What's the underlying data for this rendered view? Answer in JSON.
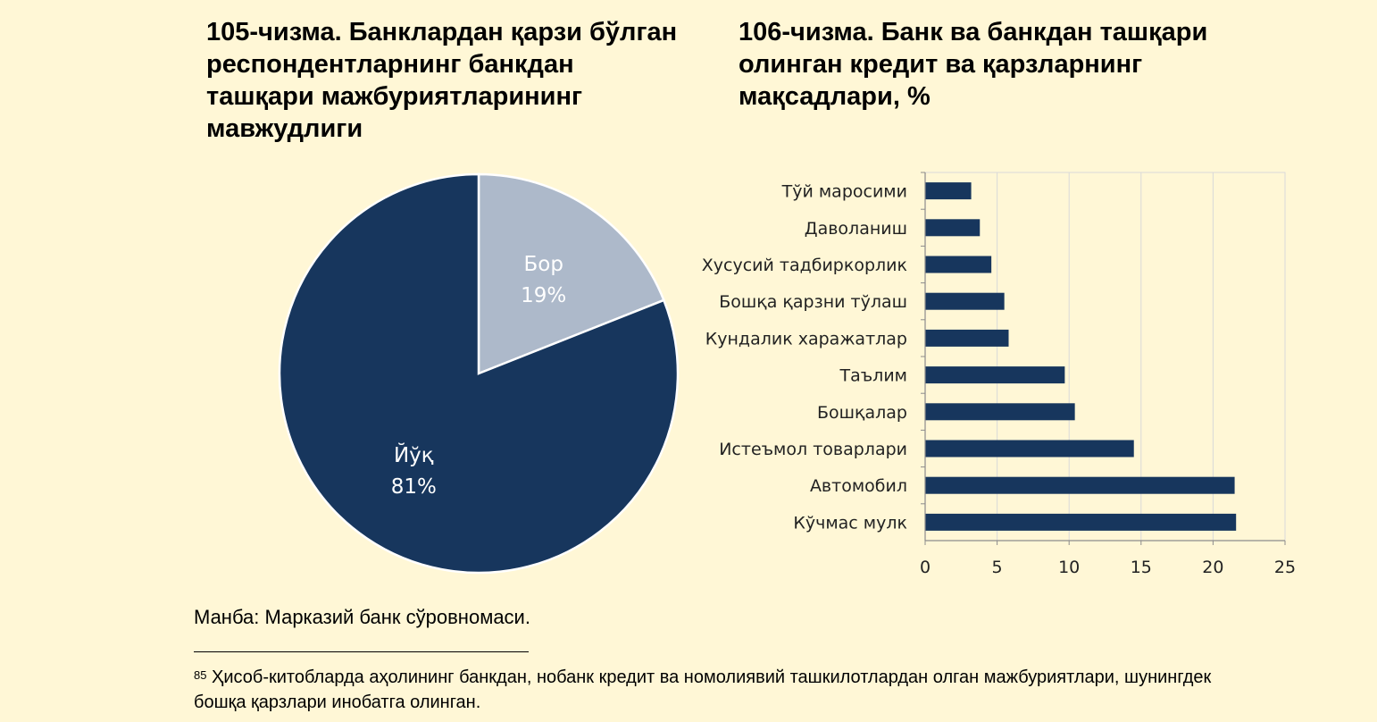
{
  "colors": {
    "background": "#fff7d6",
    "dark_navy": "#17365d",
    "light_slate": "#adb9ca"
  },
  "chart_data": [
    {
      "type": "pie",
      "title": "105-чизма. Банклардан қарзи бўлган респондентларнинг банкдан ташқари мажбуриятларининг мавжудлиги",
      "slices": [
        {
          "label": "Бор",
          "value": 19,
          "value_label": "19%",
          "color": "#adb9ca",
          "label_color": "#ffffff"
        },
        {
          "label": "Йўқ",
          "value": 81,
          "value_label": "81%",
          "color": "#17365d",
          "label_color": "#ffffff"
        }
      ]
    },
    {
      "type": "bar",
      "orientation": "horizontal",
      "title": "106-чизма. Банк ва банкдан ташқари олинган кредит ва қарзларнинг мақсадлари, %",
      "categories": [
        "Тўй маросими",
        "Даволаниш",
        "Хусусий тадбиркорлик",
        "Бошқа қарзни тўлаш",
        "Кундалик харажатлар",
        "Таълим",
        "Бошқалар",
        "Истеъмол товарлари",
        "Автомобил",
        "Кўчмас мулк"
      ],
      "values": [
        3.2,
        3.8,
        4.6,
        5.5,
        5.8,
        9.7,
        10.4,
        14.5,
        21.5,
        21.6
      ],
      "xlim": [
        0,
        25
      ],
      "xticks": [
        "0",
        "5",
        "10",
        "15",
        "20",
        "25"
      ],
      "bar_color": "#17365d",
      "grid": "vertical",
      "legend": "none"
    }
  ],
  "source": "Манба: Марказий банк сўровномаси.",
  "footnote": {
    "number": "85",
    "text": "Ҳисоб-китобларда аҳолининг банкдан, нобанк кредит ва номолиявий ташкилотлардан олган мажбуриятлари, шунингдек бошқа қарзлари инобатга олинган."
  }
}
